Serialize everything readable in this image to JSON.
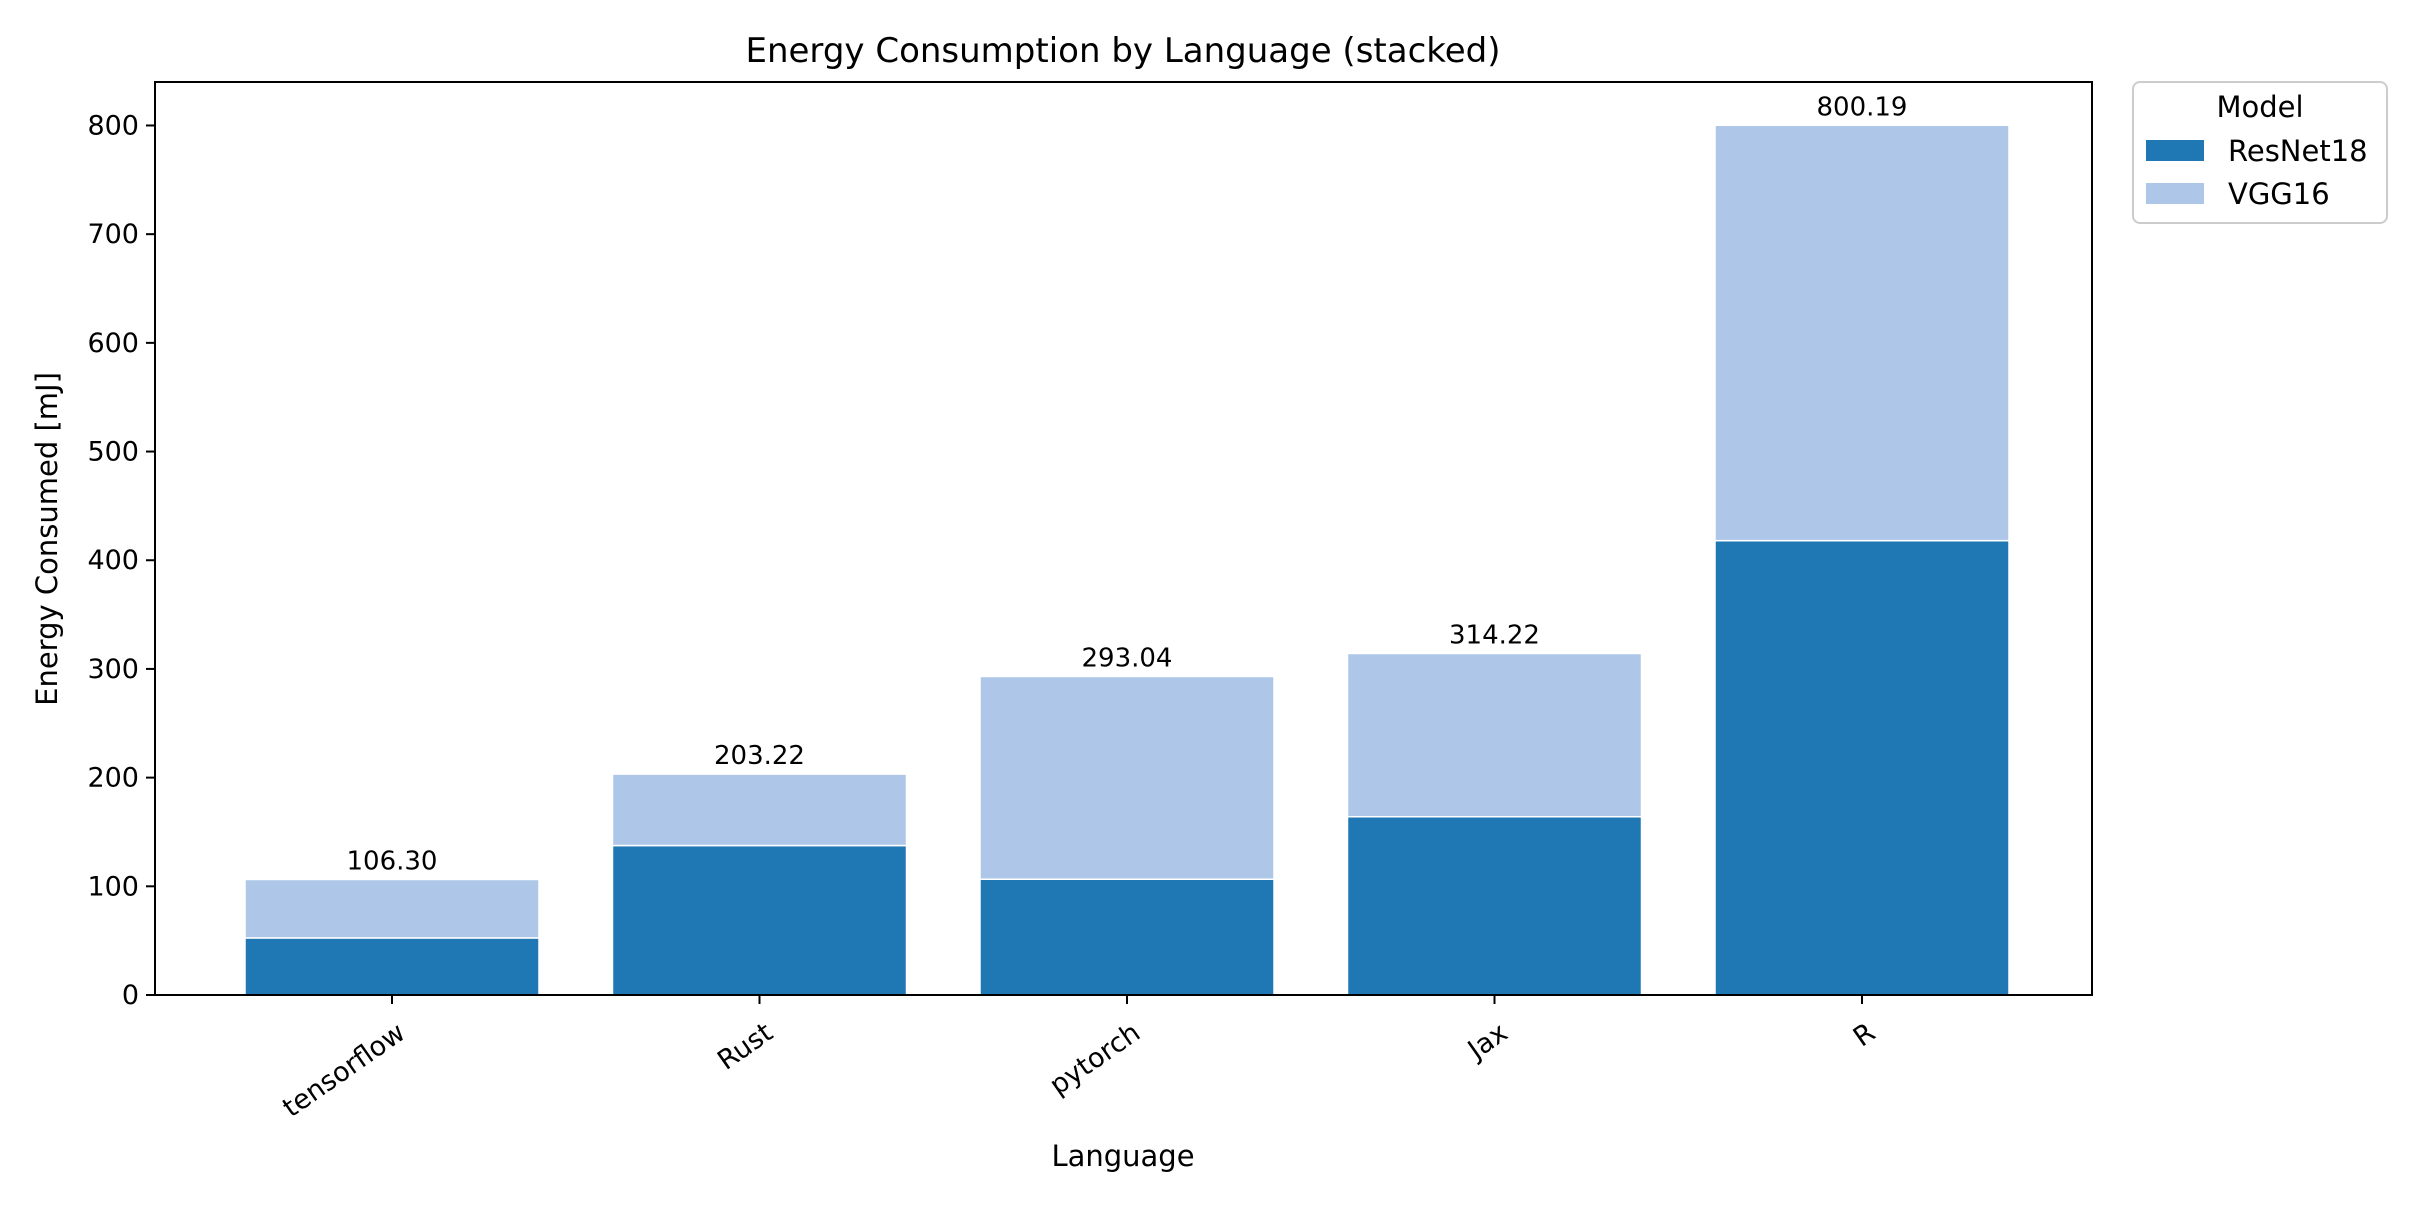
{
  "chart_data": {
    "type": "bar",
    "stacked": true,
    "title": "Energy Consumption by Language (stacked)",
    "xlabel": "Language",
    "ylabel": "Energy Consumed [mJ]",
    "categories": [
      "tensorflow",
      "Rust",
      "pytorch",
      "Jax",
      "R"
    ],
    "series": [
      {
        "name": "ResNet18",
        "color": "#1f77b4",
        "values": [
          52.5,
          137.5,
          106.5,
          164.0,
          418.0
        ]
      },
      {
        "name": "VGG16",
        "color": "#aec7e8",
        "values": [
          53.8,
          65.72,
          186.54,
          150.22,
          382.19
        ]
      }
    ],
    "totals": [
      "106.30",
      "203.22",
      "293.04",
      "314.22",
      "800.19"
    ],
    "ylim": [
      0,
      840
    ],
    "yticks": [
      0,
      100,
      200,
      300,
      400,
      500,
      600,
      700,
      800
    ],
    "grid": false,
    "legend": {
      "title": "Model",
      "placement": "outside-top-right"
    }
  }
}
